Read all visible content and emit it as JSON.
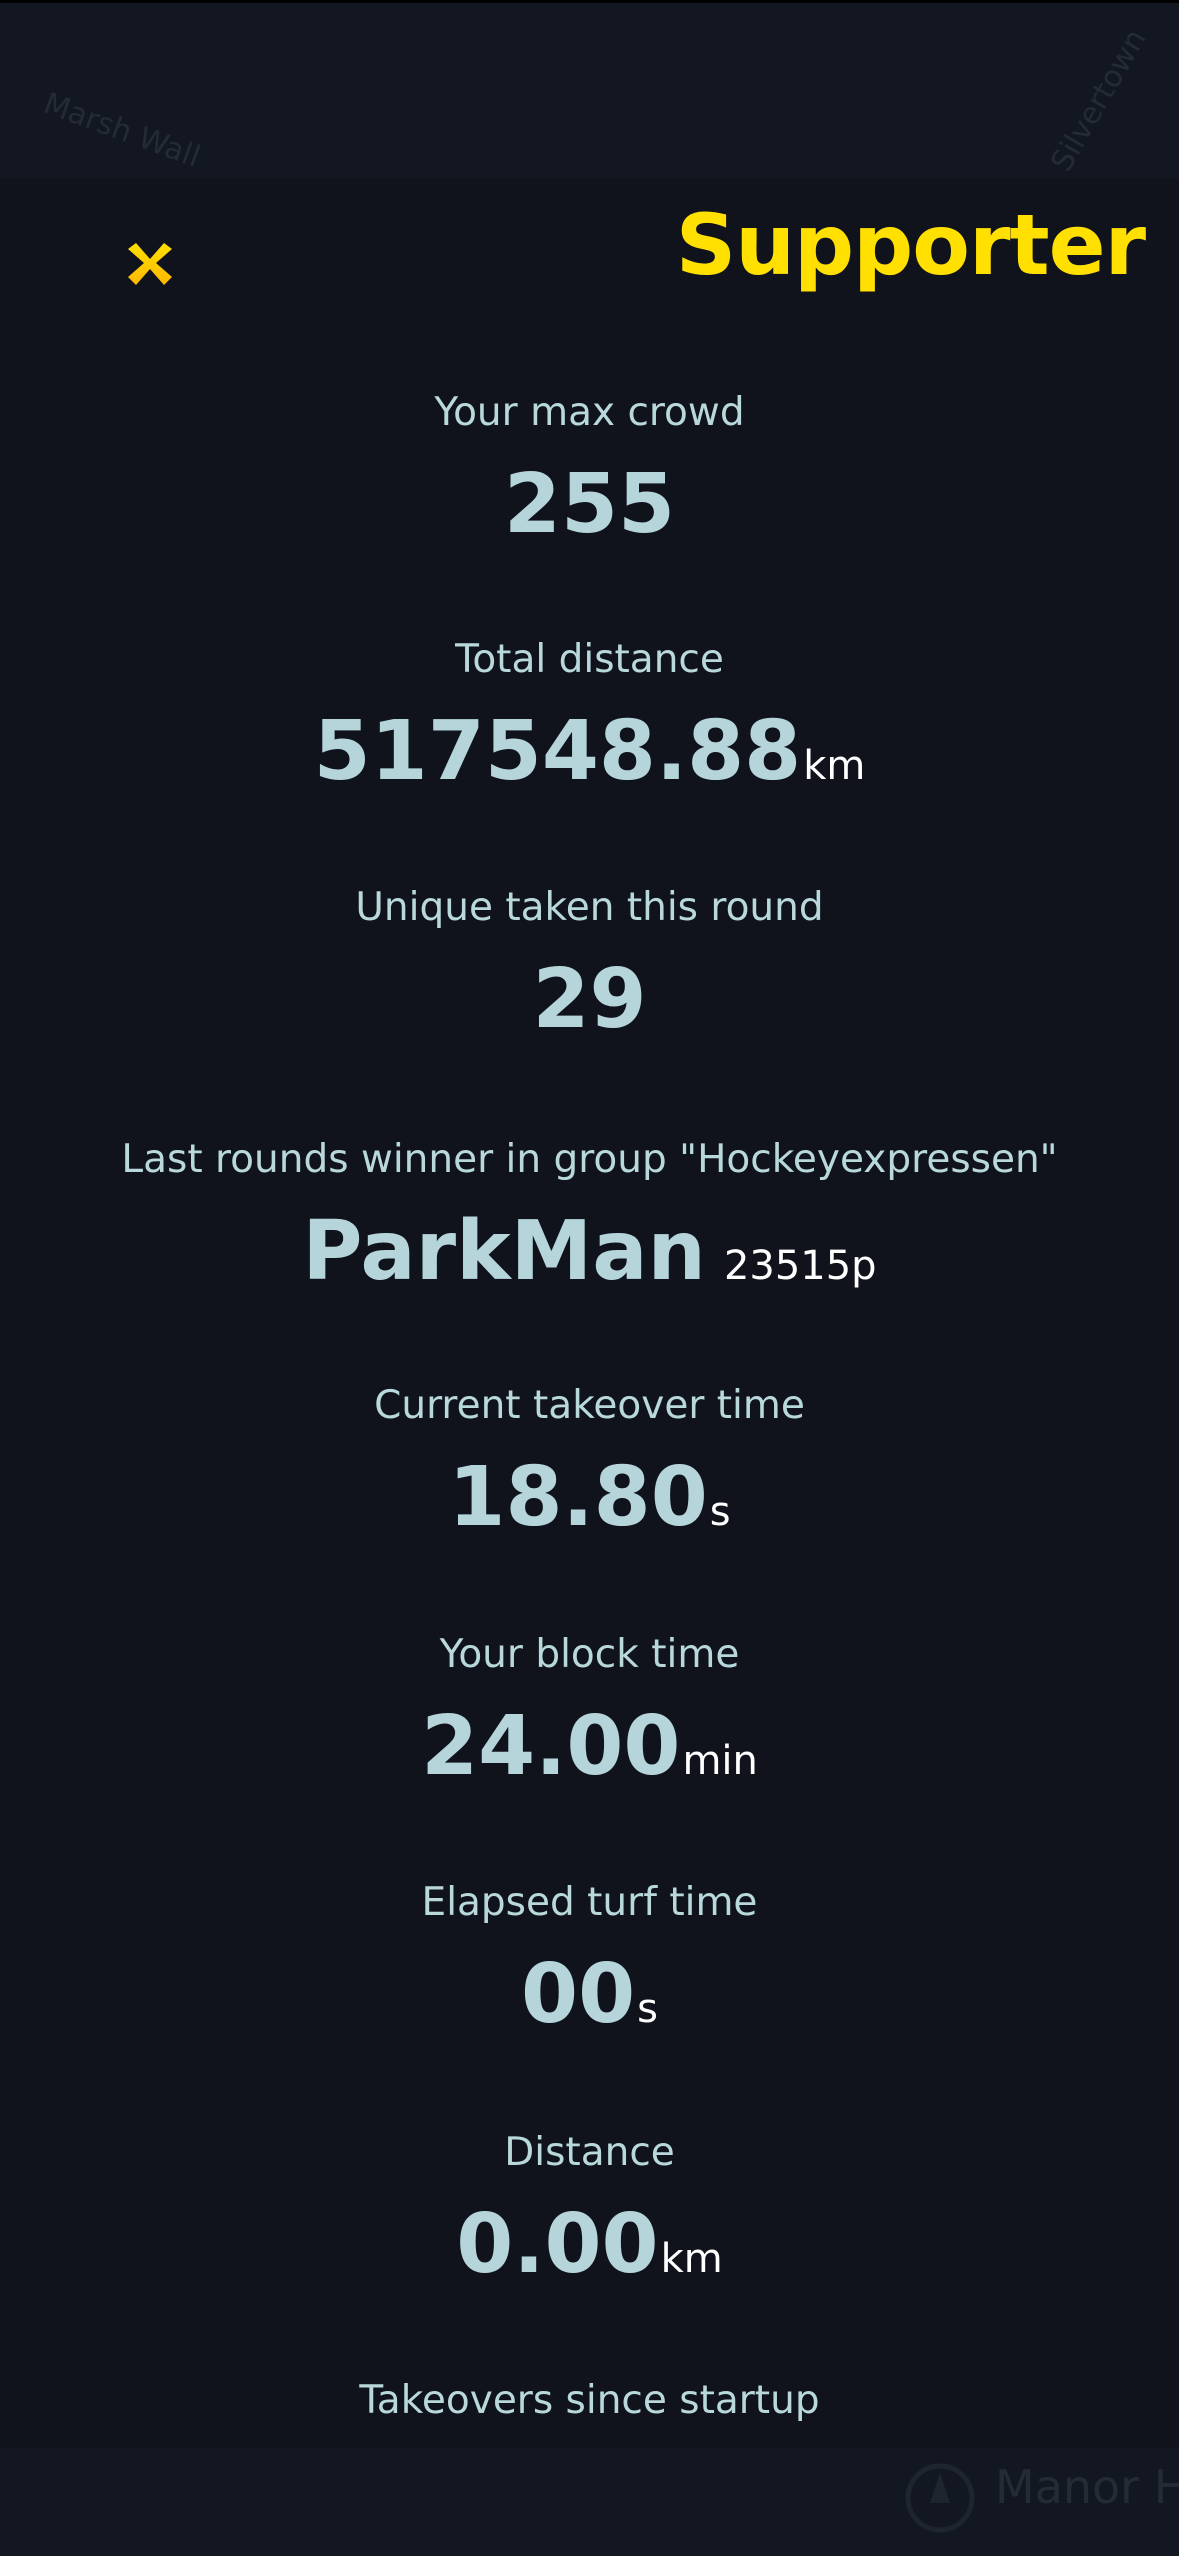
{
  "map": {
    "top_labels": [
      "Marsh Wall",
      "Silvertown"
    ],
    "bottom_labels": [
      "Manor House Gardens"
    ]
  },
  "header": {
    "close_icon": "close-x-icon",
    "title": "Supporter",
    "accent_color": "#ffe000"
  },
  "stats": [
    {
      "label": "Your max crowd",
      "value": "255",
      "unit": ""
    },
    {
      "label": "Total distance",
      "value": "517548.88",
      "unit": "km"
    },
    {
      "label": "Unique taken this round",
      "value": "29",
      "unit": ""
    },
    {
      "label": "Last rounds winner in group \"Hockeyexpressen\"",
      "value": "ParkMan",
      "unit": "23515p"
    },
    {
      "label": "Current takeover time",
      "value": "18.80",
      "unit": "s"
    },
    {
      "label": "Your block time",
      "value": "24.00",
      "unit": "min"
    },
    {
      "label": "Elapsed turf time",
      "value": "00",
      "unit": "s"
    },
    {
      "label": "Distance",
      "value": "0.00",
      "unit": "km"
    },
    {
      "label": "Takeovers since startup"
    }
  ]
}
